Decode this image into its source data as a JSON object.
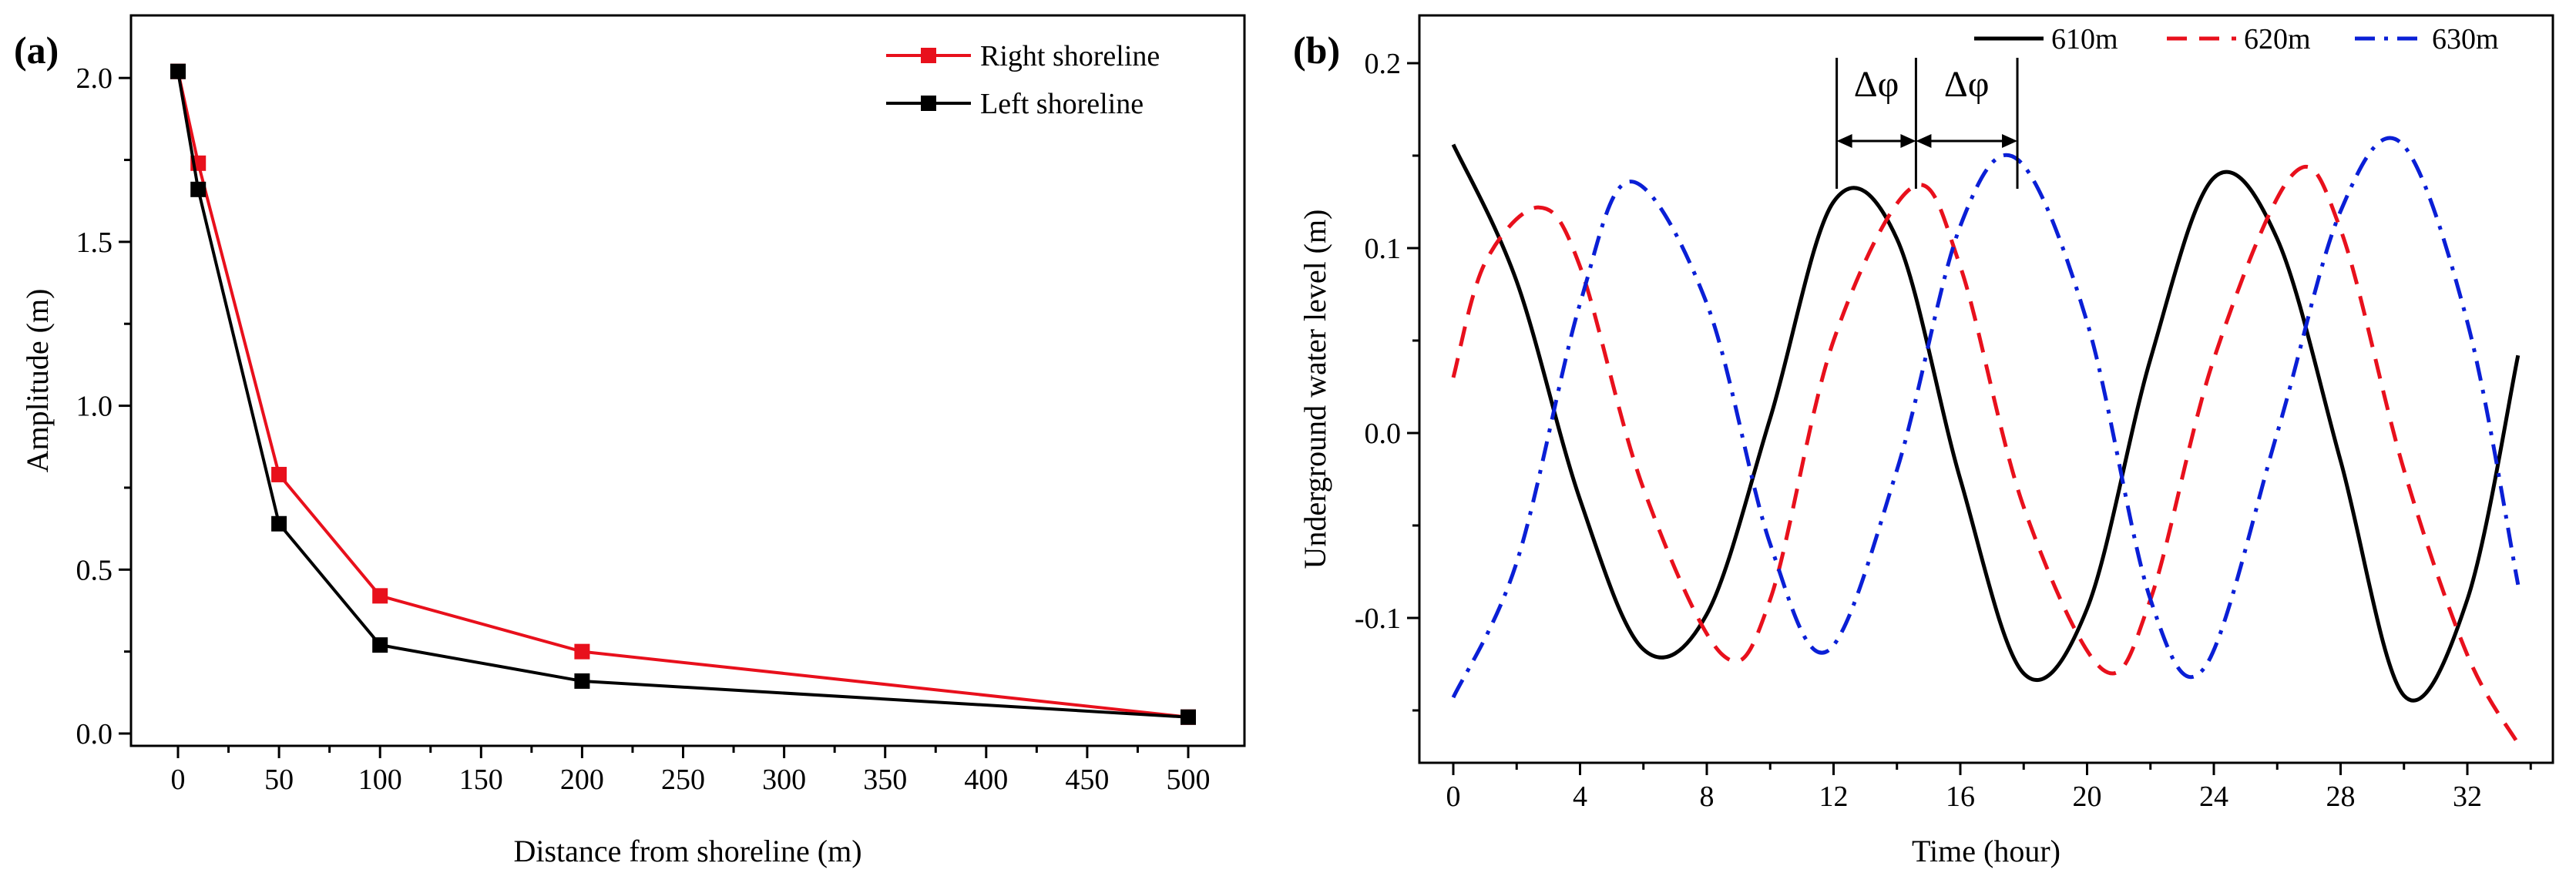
{
  "chart_data": [
    {
      "panel": "(a)",
      "type": "line",
      "xlabel": "Distance from shoreline (m)",
      "ylabel": "Amplitude (m)",
      "x_categories": [
        "0",
        "50",
        "100",
        "150",
        "200",
        "250",
        "300",
        "350",
        "400",
        "450",
        "500"
      ],
      "y_ticks": [
        "0.0",
        "0.5",
        "1.0",
        "1.5",
        "2.0"
      ],
      "ylim": [
        -0.1,
        2.18
      ],
      "x_axis_note": "broken axis: 0-200 linear, then 500 placed at the 450-500 position",
      "grid": false,
      "legend_position": "top-right",
      "series": [
        {
          "name": "Right shoreline",
          "color": "#e8101c",
          "marker": "square",
          "x": [
            0,
            10,
            50,
            100,
            200,
            500
          ],
          "y": [
            2.02,
            1.74,
            0.79,
            0.42,
            0.25,
            0.05
          ]
        },
        {
          "name": "Left shoreline",
          "color": "#000000",
          "marker": "square",
          "x": [
            0,
            10,
            50,
            100,
            200,
            500
          ],
          "y": [
            2.02,
            1.66,
            0.64,
            0.27,
            0.16,
            0.05
          ]
        }
      ]
    },
    {
      "panel": "(b)",
      "type": "line",
      "xlabel": "Time (hour)",
      "ylabel": "Underground water level (m)",
      "x_ticks": [
        "0",
        "4",
        "8",
        "12",
        "16",
        "20",
        "24",
        "28",
        "32"
      ],
      "y_ticks": [
        "-0.1",
        "0.0",
        "0.1",
        "0.2"
      ],
      "xlim": [
        -1,
        35
      ],
      "ylim": [
        -0.18,
        0.225
      ],
      "grid": false,
      "legend_position": "top",
      "annotations": [
        "Δφ",
        "Δφ"
      ],
      "series": [
        {
          "name": "610m",
          "color": "#000000",
          "dash": "solid",
          "x": [
            0,
            2,
            4,
            6,
            8,
            10,
            12,
            14,
            16,
            18,
            20,
            22,
            24,
            26,
            28,
            30,
            32,
            33.6
          ],
          "y": [
            0.156,
            0.082,
            -0.036,
            -0.117,
            -0.098,
            0.008,
            0.125,
            0.105,
            -0.025,
            -0.13,
            -0.095,
            0.04,
            0.138,
            0.105,
            -0.015,
            -0.142,
            -0.09,
            0.042
          ]
        },
        {
          "name": "620m",
          "color": "#e8101c",
          "dash": "dashed",
          "x": [
            0,
            1,
            2.7,
            4,
            6,
            8.5,
            10,
            12,
            14.5,
            16,
            18,
            20.5,
            22,
            24,
            26.5,
            28,
            30,
            32,
            33.6
          ],
          "y": [
            0.03,
            0.092,
            0.122,
            0.09,
            -0.03,
            -0.12,
            -0.09,
            0.05,
            0.133,
            0.09,
            -0.04,
            -0.128,
            -0.09,
            0.04,
            0.14,
            0.11,
            -0.02,
            -0.12,
            -0.168
          ]
        },
        {
          "name": "630m",
          "color": "#0a1fd6",
          "dash": "dashdot",
          "x": [
            0,
            2,
            4,
            5.6,
            8,
            10,
            11.8,
            14,
            16,
            17.8,
            20,
            22,
            23.7,
            26,
            28,
            29.9,
            32,
            33.6
          ],
          "y": [
            -0.143,
            -0.07,
            0.07,
            0.136,
            0.07,
            -0.06,
            -0.118,
            -0.02,
            0.112,
            0.148,
            0.06,
            -0.09,
            -0.127,
            0.0,
            0.12,
            0.157,
            0.06,
            -0.082
          ]
        }
      ]
    }
  ]
}
